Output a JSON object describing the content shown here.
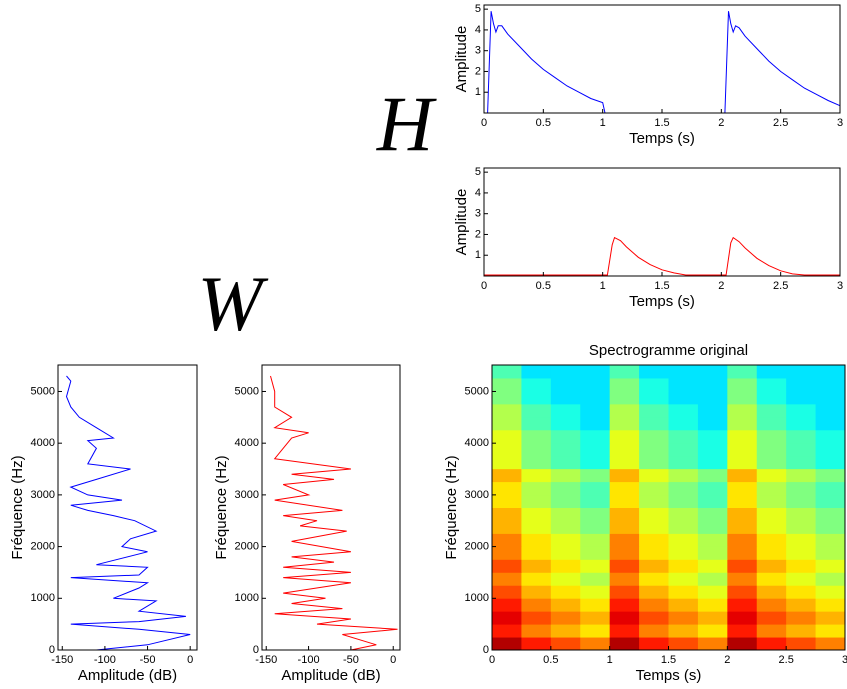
{
  "annotations": [
    "H",
    "W"
  ],
  "chart_data": [
    {
      "type": "line",
      "xlabel": "Temps (s)",
      "ylabel": "Amplitude",
      "xlim": [
        0,
        3
      ],
      "xticks": [
        0,
        0.5,
        1,
        1.5,
        2,
        2.5,
        3
      ],
      "ylim": [
        0,
        5.2
      ],
      "yticks": [
        1,
        2,
        3,
        4,
        5
      ],
      "x": [
        0,
        0.03,
        0.06,
        0.08,
        0.1,
        0.12,
        0.15,
        0.2,
        0.3,
        0.4,
        0.5,
        0.6,
        0.7,
        0.8,
        0.9,
        1.0,
        1.02,
        1.5,
        2.03,
        2.06,
        2.08,
        2.1,
        2.12,
        2.15,
        2.2,
        2.3,
        2.4,
        2.5,
        2.6,
        2.7,
        2.8,
        2.9,
        3.0
      ],
      "series": [
        {
          "color": "#0000ff",
          "values": [
            0,
            0,
            4.9,
            4.3,
            3.9,
            4.2,
            4.2,
            3.8,
            3.2,
            2.6,
            2.1,
            1.7,
            1.3,
            1.0,
            0.7,
            0.5,
            0,
            0,
            0,
            4.9,
            4.3,
            3.9,
            4.2,
            4.1,
            3.7,
            3.1,
            2.5,
            2.0,
            1.6,
            1.2,
            0.9,
            0.6,
            0.35
          ]
        }
      ]
    },
    {
      "type": "line",
      "xlabel": "Temps (s)",
      "ylabel": "Amplitude",
      "xlim": [
        0,
        3
      ],
      "xticks": [
        0,
        0.5,
        1,
        1.5,
        2,
        2.5,
        3
      ],
      "ylim": [
        0,
        5.2
      ],
      "yticks": [
        1,
        2,
        3,
        4,
        5
      ],
      "x": [
        0,
        0.5,
        1.0,
        1.04,
        1.08,
        1.1,
        1.15,
        1.2,
        1.3,
        1.4,
        1.5,
        1.6,
        1.7,
        2.0,
        2.04,
        2.08,
        2.1,
        2.15,
        2.2,
        2.3,
        2.4,
        2.5,
        2.6,
        2.7,
        3.0
      ],
      "series": [
        {
          "color": "#ff0000",
          "values": [
            0.05,
            0.05,
            0.05,
            0.05,
            1.5,
            1.85,
            1.7,
            1.4,
            0.9,
            0.55,
            0.3,
            0.15,
            0.05,
            0.05,
            0.05,
            1.6,
            1.85,
            1.65,
            1.35,
            0.85,
            0.5,
            0.25,
            0.1,
            0.05,
            0.05
          ]
        }
      ]
    },
    {
      "type": "line",
      "orientation": "vertical",
      "xlabel": "Amplitude (dB)",
      "ylabel": "Fréquence (Hz)",
      "xlim": [
        -155,
        8
      ],
      "xticks": [
        -150,
        -100,
        -50,
        0
      ],
      "ylim": [
        0,
        5512
      ],
      "yticks": [
        0,
        1000,
        2000,
        3000,
        4000,
        5000
      ],
      "y": [
        0,
        100,
        300,
        400,
        500,
        550,
        650,
        750,
        950,
        1000,
        1200,
        1300,
        1400,
        1450,
        1600,
        1650,
        1900,
        2000,
        2150,
        2300,
        2500,
        2600,
        2700,
        2800,
        2900,
        3000,
        3150,
        3300,
        3500,
        3600,
        3900,
        4050,
        4100,
        4300,
        4500,
        4700,
        4900,
        5200,
        5300
      ],
      "series": [
        {
          "color": "#0000ff",
          "values": [
            -110,
            -50,
            0,
            -60,
            -140,
            -60,
            -5,
            -60,
            -40,
            -90,
            -60,
            -50,
            -140,
            -60,
            -50,
            -110,
            -50,
            -80,
            -70,
            -40,
            -65,
            -90,
            -120,
            -140,
            -80,
            -120,
            -140,
            -110,
            -70,
            -120,
            -110,
            -120,
            -90,
            -110,
            -130,
            -140,
            -145,
            -140,
            -145
          ]
        }
      ]
    },
    {
      "type": "line",
      "orientation": "vertical",
      "xlabel": "Amplitude (dB)",
      "ylabel": "Fréquence (Hz)",
      "xlim": [
        -155,
        8
      ],
      "xticks": [
        -150,
        -100,
        -50,
        0
      ],
      "ylim": [
        0,
        5512
      ],
      "yticks": [
        0,
        1000,
        2000,
        3000,
        4000,
        5000
      ],
      "y": [
        0,
        100,
        300,
        400,
        500,
        600,
        700,
        800,
        900,
        1000,
        1100,
        1300,
        1400,
        1500,
        1600,
        1700,
        1800,
        1900,
        2100,
        2300,
        2400,
        2500,
        2600,
        2700,
        2900,
        3000,
        3200,
        3300,
        3400,
        3500,
        3700,
        3900,
        4100,
        4200,
        4300,
        4500,
        4700,
        5000,
        5300
      ],
      "series": [
        {
          "color": "#ff0000",
          "values": [
            -50,
            -20,
            -60,
            5,
            -90,
            -50,
            -140,
            -60,
            -120,
            -80,
            -130,
            -50,
            -130,
            -50,
            -130,
            -70,
            -120,
            -50,
            -120,
            -55,
            -110,
            -90,
            -130,
            -60,
            -140,
            -100,
            -130,
            -70,
            -120,
            -50,
            -140,
            -130,
            -120,
            -100,
            -140,
            -120,
            -140,
            -140,
            -145
          ]
        }
      ]
    },
    {
      "type": "heatmap",
      "title": "Spectrogramme original",
      "xlabel": "Temps (s)",
      "ylabel": "Fréquence (Hz)",
      "xlim": [
        0,
        3
      ],
      "xticks": [
        0,
        0.5,
        1,
        1.5,
        2,
        2.5,
        3
      ],
      "ylim": [
        0,
        5512
      ],
      "yticks": [
        0,
        1000,
        2000,
        3000,
        4000,
        5000
      ],
      "z": [
        [
          0.95,
          0.85,
          0.8,
          0.75,
          0.95,
          0.85,
          0.8,
          0.75,
          0.95,
          0.85,
          0.8,
          0.75
        ],
        [
          0.85,
          0.75,
          0.7,
          0.65,
          0.85,
          0.75,
          0.7,
          0.65,
          0.85,
          0.75,
          0.7,
          0.65
        ],
        [
          0.9,
          0.8,
          0.75,
          0.7,
          0.9,
          0.8,
          0.75,
          0.7,
          0.9,
          0.8,
          0.75,
          0.7
        ],
        [
          0.85,
          0.75,
          0.7,
          0.65,
          0.85,
          0.75,
          0.7,
          0.65,
          0.85,
          0.75,
          0.7,
          0.65
        ],
        [
          0.8,
          0.7,
          0.65,
          0.6,
          0.8,
          0.7,
          0.65,
          0.6,
          0.8,
          0.7,
          0.65,
          0.6
        ],
        [
          0.75,
          0.65,
          0.6,
          0.55,
          0.75,
          0.65,
          0.6,
          0.55,
          0.75,
          0.65,
          0.6,
          0.55
        ],
        [
          0.8,
          0.7,
          0.65,
          0.6,
          0.8,
          0.7,
          0.65,
          0.6,
          0.8,
          0.7,
          0.65,
          0.6
        ],
        [
          0.75,
          0.65,
          0.6,
          0.55,
          0.75,
          0.65,
          0.6,
          0.55,
          0.75,
          0.65,
          0.6,
          0.55
        ],
        [
          0.75,
          0.65,
          0.6,
          0.55,
          0.75,
          0.65,
          0.6,
          0.55,
          0.75,
          0.65,
          0.6,
          0.55
        ],
        [
          0.7,
          0.6,
          0.55,
          0.5,
          0.7,
          0.6,
          0.55,
          0.5,
          0.7,
          0.6,
          0.55,
          0.5
        ],
        [
          0.7,
          0.6,
          0.55,
          0.5,
          0.7,
          0.6,
          0.55,
          0.5,
          0.7,
          0.6,
          0.55,
          0.5
        ],
        [
          0.65,
          0.55,
          0.5,
          0.45,
          0.65,
          0.55,
          0.5,
          0.45,
          0.65,
          0.55,
          0.5,
          0.45
        ],
        [
          0.65,
          0.55,
          0.5,
          0.45,
          0.65,
          0.55,
          0.5,
          0.45,
          0.65,
          0.55,
          0.5,
          0.45
        ],
        [
          0.7,
          0.6,
          0.55,
          0.5,
          0.7,
          0.6,
          0.55,
          0.5,
          0.7,
          0.6,
          0.55,
          0.5
        ],
        [
          0.6,
          0.5,
          0.45,
          0.4,
          0.6,
          0.5,
          0.45,
          0.4,
          0.6,
          0.5,
          0.45,
          0.4
        ],
        [
          0.6,
          0.5,
          0.45,
          0.4,
          0.6,
          0.5,
          0.45,
          0.4,
          0.6,
          0.5,
          0.45,
          0.4
        ],
        [
          0.6,
          0.5,
          0.45,
          0.4,
          0.6,
          0.5,
          0.45,
          0.4,
          0.6,
          0.5,
          0.45,
          0.4
        ],
        [
          0.55,
          0.45,
          0.4,
          0.35,
          0.55,
          0.45,
          0.4,
          0.35,
          0.55,
          0.45,
          0.4,
          0.35
        ],
        [
          0.55,
          0.45,
          0.4,
          0.35,
          0.55,
          0.45,
          0.4,
          0.35,
          0.55,
          0.45,
          0.4,
          0.35
        ],
        [
          0.5,
          0.4,
          0.35,
          0.35,
          0.5,
          0.4,
          0.35,
          0.35,
          0.5,
          0.4,
          0.35,
          0.35
        ],
        [
          0.5,
          0.4,
          0.35,
          0.35,
          0.5,
          0.4,
          0.35,
          0.35,
          0.5,
          0.4,
          0.35,
          0.35
        ],
        [
          0.45,
          0.35,
          0.35,
          0.35,
          0.45,
          0.35,
          0.35,
          0.35,
          0.45,
          0.35,
          0.35,
          0.35
        ]
      ]
    }
  ]
}
